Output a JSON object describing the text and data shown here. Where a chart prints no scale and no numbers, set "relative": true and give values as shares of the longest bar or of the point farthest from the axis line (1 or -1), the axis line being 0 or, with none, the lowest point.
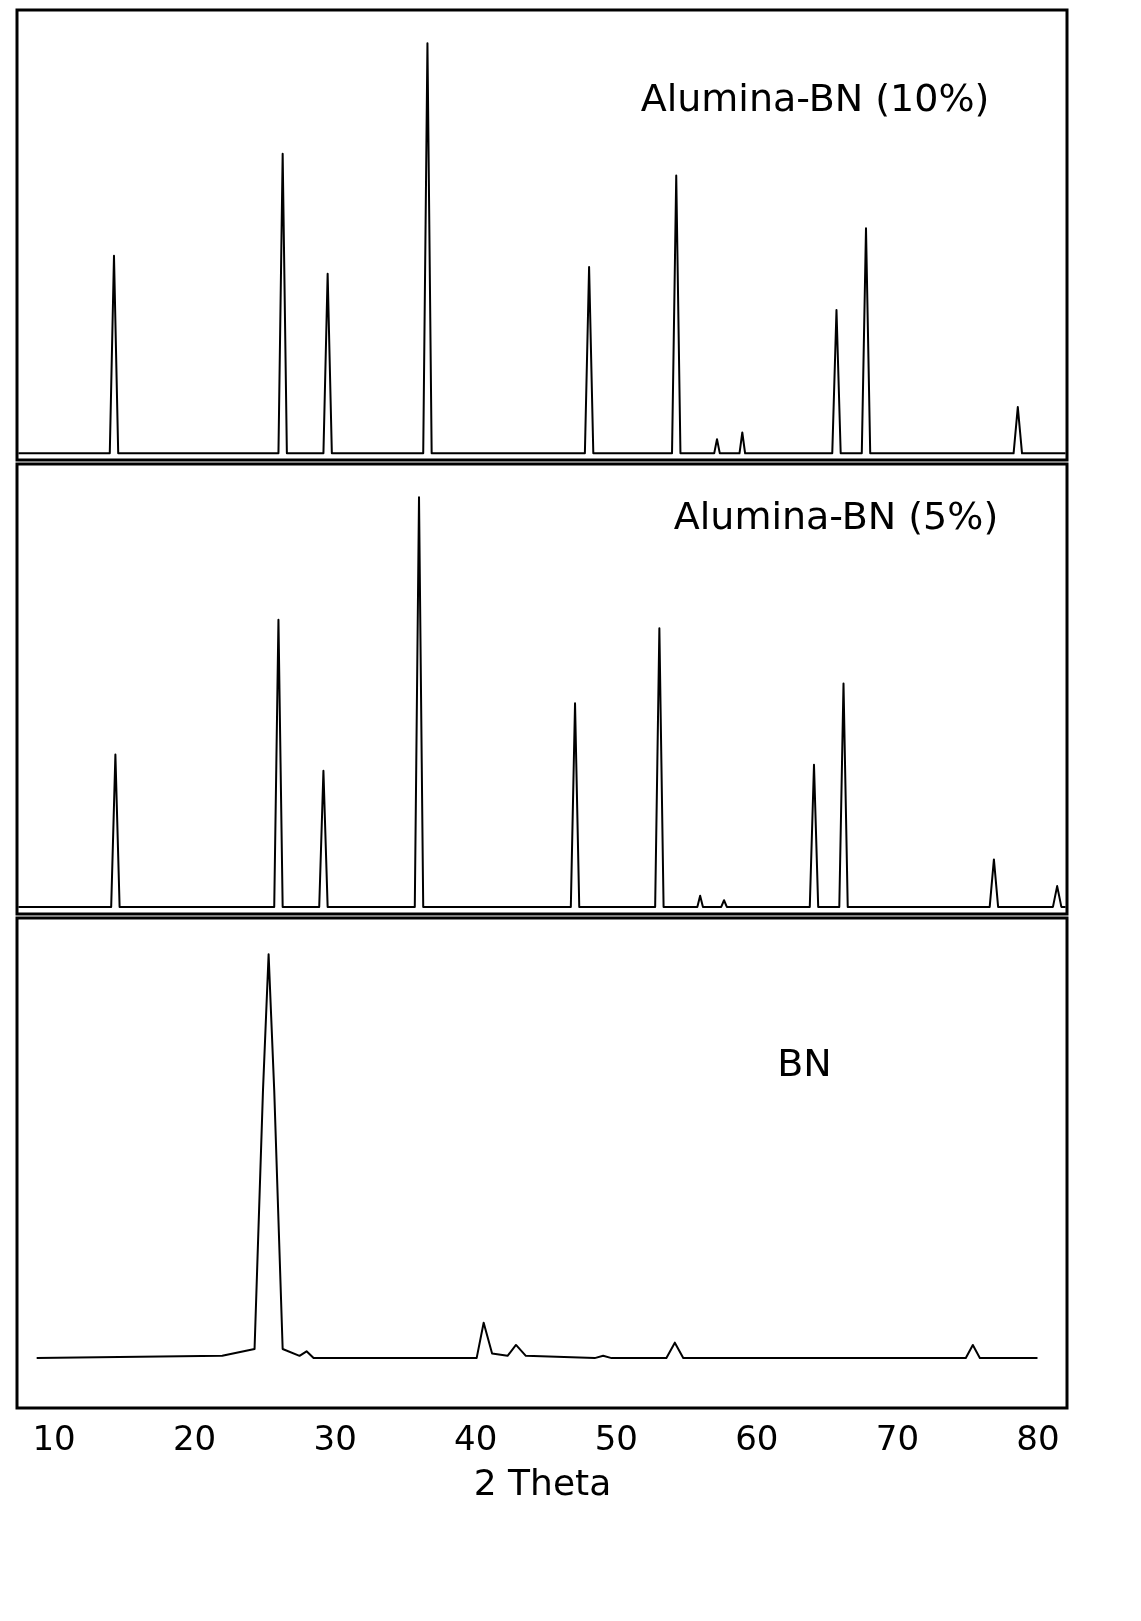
{
  "chart_data": [
    {
      "type": "line",
      "relative": true,
      "xlim": [
        7.4,
        82.1
      ],
      "tick_labels": false,
      "series": [
        {
          "name": "Alumina-BN (10%)",
          "color": "#000000",
          "x": [
            7.5,
            14.0,
            14.3,
            14.6,
            26.0,
            26.3,
            26.6,
            29.2,
            29.5,
            29.8,
            36.3,
            36.6,
            36.9,
            47.8,
            48.1,
            48.4,
            54.0,
            54.3,
            54.6,
            57.0,
            57.2,
            57.4,
            58.8,
            59.0,
            59.2,
            65.4,
            65.7,
            66.0,
            67.5,
            67.8,
            68.1,
            78.3,
            78.6,
            78.9,
            82.0
          ],
          "values": [
            0.016,
            0.016,
            0.49,
            0.016,
            0.016,
            0.735,
            0.016,
            0.016,
            0.447,
            0.016,
            0.016,
            1,
            0.016,
            0.016,
            0.463,
            0.016,
            0.016,
            0.683,
            0.016,
            0.016,
            0.05,
            0.016,
            0.016,
            0.066,
            0.016,
            0.016,
            0.36,
            0.016,
            0.016,
            0.556,
            0.016,
            0.016,
            0.127,
            0.016,
            0.016
          ]
        }
      ]
    },
    {
      "type": "line",
      "relative": true,
      "xlim": [
        7.4,
        82.1
      ],
      "tick_labels": false,
      "series": [
        {
          "name": "Alumina-BN (5%)",
          "color": "#000000",
          "x": [
            7.5,
            14.1,
            14.4,
            14.7,
            25.7,
            26.0,
            26.3,
            28.9,
            29.2,
            29.5,
            35.7,
            36.0,
            36.3,
            46.8,
            47.1,
            47.4,
            52.8,
            53.1,
            53.4,
            55.8,
            56.0,
            56.2,
            57.5,
            57.7,
            57.9,
            63.8,
            64.1,
            64.4,
            65.9,
            66.2,
            66.5,
            76.6,
            76.9,
            77.2,
            81.1,
            81.4,
            81.7,
            82.0
          ],
          "values": [
            0.017,
            0.017,
            0.383,
            0.017,
            0.017,
            0.706,
            0.017,
            0.017,
            0.344,
            0.017,
            0.017,
            1,
            0.017,
            0.017,
            0.506,
            0.017,
            0.017,
            0.686,
            0.017,
            0.017,
            0.044,
            0.017,
            0.017,
            0.033,
            0.017,
            0.017,
            0.358,
            0.017,
            0.017,
            0.553,
            0.017,
            0.017,
            0.131,
            0.017,
            0.017,
            0.067,
            0.017,
            0.017
          ]
        }
      ]
    },
    {
      "type": "line",
      "relative": true,
      "xlim": [
        7.4,
        82.1
      ],
      "xticks": [
        10,
        20,
        30,
        40,
        50,
        60,
        70,
        80
      ],
      "tick_labels": "x",
      "xlabel": "2 Theta",
      "series": [
        {
          "name": "BN",
          "color": "#000000",
          "x": [
            8.8,
            22,
            24.3,
            24.9,
            25.3,
            25.7,
            26.3,
            27.5,
            28,
            28.5,
            40.1,
            40.6,
            41.2,
            42.3,
            42.9,
            43.6,
            48.5,
            49.1,
            49.7,
            53.6,
            54.2,
            54.8,
            74.9,
            75.4,
            75.9,
            80
          ],
          "values": [
            0.11,
            0.115,
            0.13,
            0.7,
            1,
            0.7,
            0.13,
            0.115,
            0.125,
            0.11,
            0.11,
            0.188,
            0.12,
            0.115,
            0.139,
            0.115,
            0.11,
            0.115,
            0.11,
            0.11,
            0.144,
            0.11,
            0.11,
            0.139,
            0.11,
            0.11
          ]
        }
      ]
    }
  ]
}
